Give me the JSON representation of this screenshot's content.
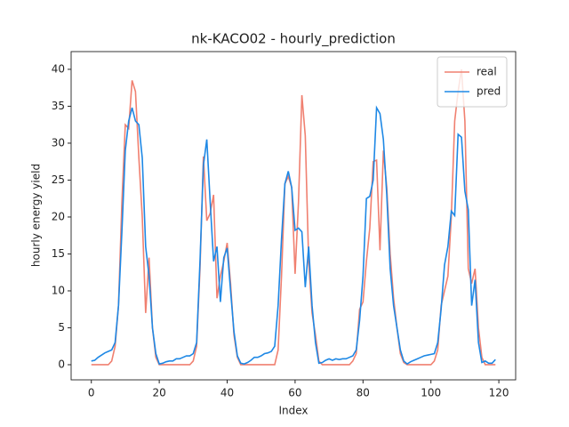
{
  "chart_data": {
    "type": "line",
    "title": "nk-KACO02 - hourly_prediction",
    "x_label": "Index",
    "y_label": "hourly energy yield",
    "x": [
      0,
      1,
      2,
      3,
      4,
      5,
      6,
      7,
      8,
      9,
      10,
      11,
      12,
      13,
      14,
      15,
      16,
      17,
      18,
      19,
      20,
      21,
      22,
      23,
      24,
      25,
      26,
      27,
      28,
      29,
      30,
      31,
      32,
      33,
      34,
      35,
      36,
      37,
      38,
      39,
      40,
      41,
      42,
      43,
      44,
      45,
      46,
      47,
      48,
      49,
      50,
      51,
      52,
      53,
      54,
      55,
      56,
      57,
      58,
      59,
      60,
      61,
      62,
      63,
      64,
      65,
      66,
      67,
      68,
      69,
      70,
      71,
      72,
      73,
      74,
      75,
      76,
      77,
      78,
      79,
      80,
      81,
      82,
      83,
      84,
      85,
      86,
      87,
      88,
      89,
      90,
      91,
      92,
      93,
      94,
      95,
      96,
      97,
      98,
      99,
      100,
      101,
      102,
      103,
      104,
      105,
      106,
      107,
      108,
      109,
      110,
      111,
      112,
      113,
      114,
      115,
      116,
      117,
      118,
      119
    ],
    "series": [
      {
        "name": "real",
        "color": "#f08070",
        "values": [
          0,
          0,
          0,
          0,
          0,
          0,
          0.5,
          2.5,
          8,
          22,
          32.5,
          32,
          38.5,
          37,
          28,
          20,
          7,
          14.5,
          5,
          1,
          0,
          0,
          0,
          0,
          0,
          0,
          0,
          0,
          0,
          0,
          0.5,
          2.5,
          13,
          28.2,
          19.5,
          20.5,
          23,
          9,
          12,
          14,
          16.5,
          11,
          4,
          1,
          0,
          0,
          0,
          0,
          0,
          0,
          0,
          0,
          0,
          0,
          0,
          2,
          12,
          24.5,
          25.5,
          24,
          12.3,
          22,
          36.5,
          31,
          14,
          7,
          4,
          0.5,
          0,
          0,
          0,
          0,
          0,
          0,
          0,
          0,
          0,
          0.5,
          1.5,
          7.5,
          8.5,
          14,
          18.5,
          27.5,
          27.7,
          15.5,
          29,
          24,
          15,
          9,
          5,
          1.5,
          0.3,
          0,
          0,
          0,
          0,
          0,
          0,
          0,
          0,
          0.5,
          2,
          8,
          10,
          12,
          20,
          33,
          37,
          40,
          33,
          13,
          11,
          13,
          5,
          1,
          0,
          0,
          0,
          0
        ]
      },
      {
        "name": "pred",
        "color": "#1e88e5",
        "values": [
          0.5,
          0.6,
          1,
          1.3,
          1.6,
          1.8,
          2,
          3,
          8,
          18,
          29,
          33,
          34.8,
          33,
          32.5,
          28,
          16,
          12,
          5,
          1.5,
          0.1,
          0.2,
          0.4,
          0.5,
          0.5,
          0.8,
          0.8,
          1,
          1.2,
          1.2,
          1.5,
          3,
          14,
          27,
          30.5,
          22,
          14,
          16,
          8.5,
          14.5,
          15.8,
          10,
          4.5,
          1.2,
          0.2,
          0.1,
          0.3,
          0.6,
          1,
          1,
          1.2,
          1.5,
          1.6,
          1.8,
          2.5,
          8,
          17,
          24.5,
          26.2,
          24,
          18.2,
          18.5,
          18,
          10.5,
          16,
          8,
          3,
          0.2,
          0.3,
          0.6,
          0.8,
          0.6,
          0.8,
          0.7,
          0.8,
          0.8,
          1,
          1.2,
          2,
          6,
          12,
          22.5,
          22.8,
          25,
          34.8,
          34,
          30.5,
          23,
          13,
          8,
          5,
          2,
          0.5,
          0.1,
          0.4,
          0.6,
          0.8,
          1,
          1.2,
          1.3,
          1.4,
          1.5,
          3,
          7.5,
          13.5,
          16,
          20.8,
          20.2,
          31.2,
          30.8,
          23.5,
          21,
          8,
          11.5,
          3,
          0.3,
          0.5,
          0.2,
          0.2,
          0.7
        ]
      }
    ],
    "xlim": [
      -5.95,
      124.95
    ],
    "ylim": [
      -2.05,
      42.4
    ],
    "xticks": [
      0,
      20,
      40,
      60,
      80,
      100,
      120
    ],
    "yticks": [
      0,
      5,
      10,
      15,
      20,
      25,
      30,
      35,
      40
    ],
    "legend": "upper right",
    "grid": false
  }
}
